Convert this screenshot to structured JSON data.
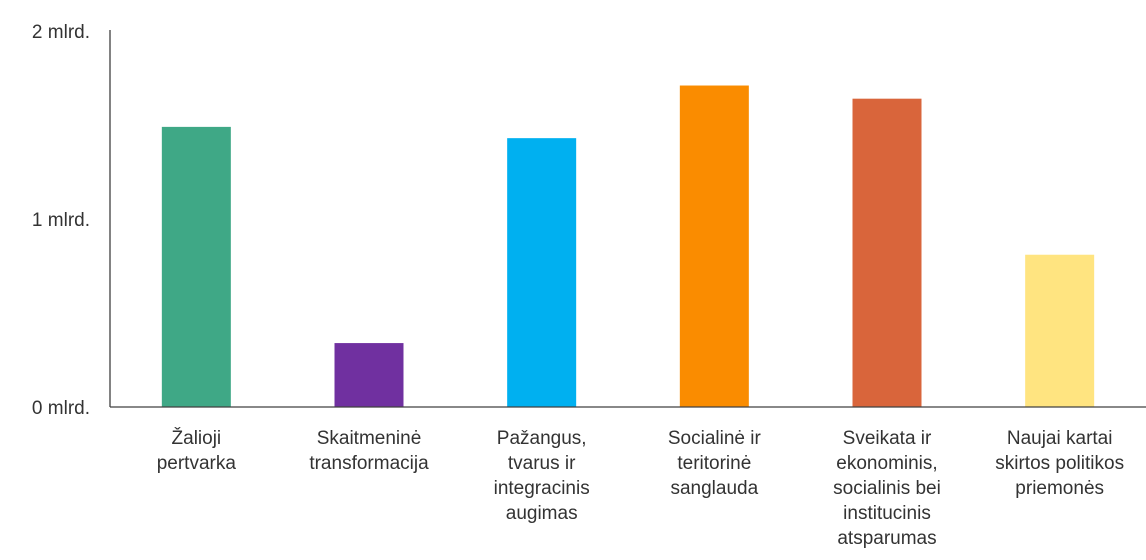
{
  "chart_data": {
    "type": "bar",
    "title": "",
    "xlabel": "",
    "ylabel": "",
    "ylim": [
      0,
      2
    ],
    "y_ticks": [
      {
        "value": 0,
        "label": "0 mlrd."
      },
      {
        "value": 1,
        "label": "1 mlrd."
      },
      {
        "value": 2,
        "label": "2 mlrd."
      }
    ],
    "categories": [
      [
        "Žalioji",
        "pertvarka"
      ],
      [
        "Skaitmeninė",
        "transformacija"
      ],
      [
        "Pažangus,",
        "tvarus ir",
        "integracinis",
        "augimas"
      ],
      [
        "Socialinė ir",
        "teritorinė",
        "sanglauda"
      ],
      [
        "Sveikata ir",
        "ekonominis,",
        "socialinis bei",
        "institucinis",
        "atsparumas"
      ],
      [
        "Naujai kartai",
        "skirtos politikos",
        "priemonės"
      ]
    ],
    "values": [
      1.49,
      0.34,
      1.43,
      1.71,
      1.64,
      0.81
    ],
    "colors": [
      "#3fa886",
      "#7030a0",
      "#00b0f0",
      "#fa8c00",
      "#d9653b",
      "#ffe480"
    ],
    "grid": false,
    "legend": "none"
  }
}
